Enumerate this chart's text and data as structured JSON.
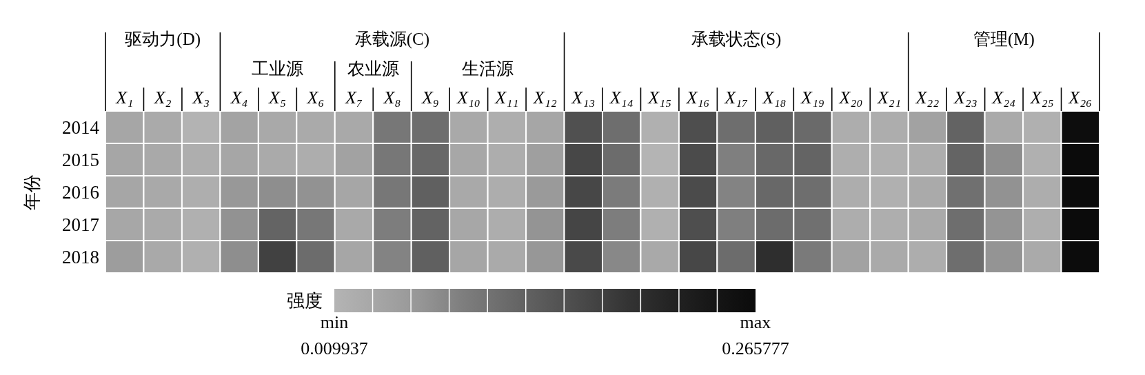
{
  "chart_data": {
    "type": "heatmap",
    "ylabel": "年份",
    "clabel": "强度",
    "categories": [
      "X₁",
      "X₂",
      "X₃",
      "X₄",
      "X₅",
      "X₆",
      "X₇",
      "X₈",
      "X₉",
      "X₁₀",
      "X₁₁",
      "X₁₂",
      "X₁₃",
      "X₁₄",
      "X₁₅",
      "X₁₆",
      "X₁₇",
      "X₁₈",
      "X₁₉",
      "X₂₀",
      "X₂₁",
      "X₂₂",
      "X₂₃",
      "X₂₄",
      "X₂₅",
      "X₂₆"
    ],
    "y_categories": [
      "2014",
      "2015",
      "2016",
      "2017",
      "2018"
    ],
    "cells": [
      [
        0.036,
        0.028,
        0.012,
        0.041,
        0.03,
        0.028,
        0.03,
        0.097,
        0.11,
        0.03,
        0.02,
        0.036,
        0.151,
        0.11,
        0.018,
        0.153,
        0.11,
        0.128,
        0.115,
        0.023,
        0.023,
        0.043,
        0.125,
        0.028,
        0.018,
        0.261
      ],
      [
        0.036,
        0.03,
        0.02,
        0.036,
        0.028,
        0.023,
        0.043,
        0.097,
        0.117,
        0.033,
        0.023,
        0.048,
        0.163,
        0.112,
        0.01,
        0.158,
        0.087,
        0.117,
        0.123,
        0.02,
        0.018,
        0.023,
        0.123,
        0.071,
        0.018,
        0.266
      ],
      [
        0.036,
        0.03,
        0.02,
        0.059,
        0.071,
        0.066,
        0.036,
        0.097,
        0.128,
        0.03,
        0.023,
        0.056,
        0.163,
        0.092,
        0.018,
        0.158,
        0.082,
        0.117,
        0.11,
        0.023,
        0.018,
        0.028,
        0.107,
        0.066,
        0.023,
        0.266
      ],
      [
        0.033,
        0.028,
        0.018,
        0.066,
        0.123,
        0.097,
        0.03,
        0.089,
        0.125,
        0.033,
        0.023,
        0.064,
        0.166,
        0.089,
        0.018,
        0.153,
        0.087,
        0.112,
        0.107,
        0.023,
        0.02,
        0.028,
        0.11,
        0.064,
        0.02,
        0.266
      ],
      [
        0.051,
        0.03,
        0.018,
        0.071,
        0.171,
        0.112,
        0.036,
        0.082,
        0.128,
        0.036,
        0.028,
        0.061,
        0.161,
        0.077,
        0.03,
        0.163,
        0.112,
        0.197,
        0.094,
        0.043,
        0.028,
        0.023,
        0.11,
        0.064,
        0.028,
        0.264
      ]
    ],
    "clim": [
      0.009937,
      0.265777
    ],
    "cticks": [
      {
        "value": 0.009937,
        "label": "min\n0.009937"
      },
      {
        "value": 0.265777,
        "label": "max\n0.265777"
      }
    ],
    "colors": [
      "#b4b4b4",
      "#a6a6a6",
      "#979797",
      "#7f7f7f",
      "#6c6c6c",
      "#595959",
      "#474747",
      "#333333",
      "#232323",
      "#161616",
      "#0b0b0b"
    ],
    "annotations": [
      "驱动力(D)",
      "承载源(C)",
      "工业源",
      "农业源",
      "生活源",
      "承载状态(S)",
      "管理(M)"
    ]
  }
}
